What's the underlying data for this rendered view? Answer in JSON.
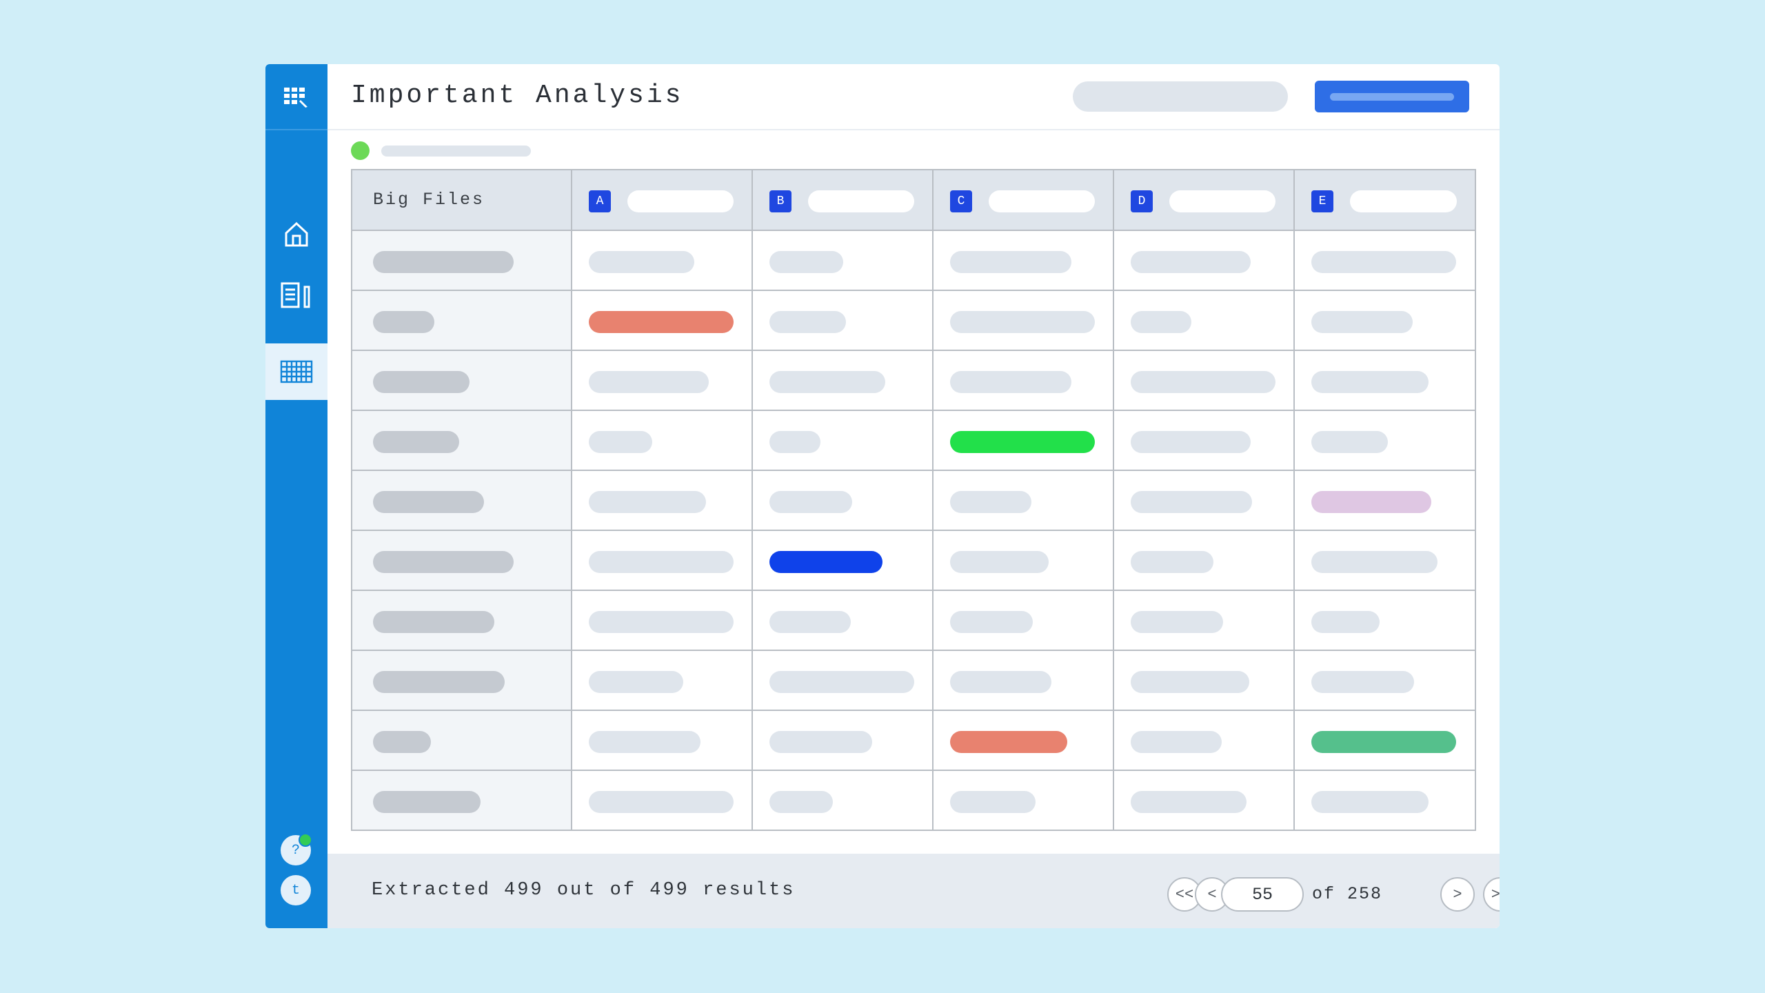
{
  "app": {
    "title": "Important Analysis"
  },
  "sidebar": {
    "items": [
      {
        "name": "home",
        "icon": "home-icon",
        "active": false
      },
      {
        "name": "documents",
        "icon": "document-edit-icon",
        "active": false
      },
      {
        "name": "grid",
        "icon": "table-grid-icon",
        "active": true
      }
    ],
    "bottom": {
      "help_label": "?",
      "user_initial": "t"
    }
  },
  "table": {
    "first_header": "Big Files",
    "columns": [
      {
        "badge": "A"
      },
      {
        "badge": "B"
      },
      {
        "badge": "C"
      },
      {
        "badge": "D"
      },
      {
        "badge": "E"
      }
    ],
    "colors": {
      "placeholder": "#dfe5ec",
      "first_col_placeholder": "#c5cad1",
      "red": "#e8826f",
      "green": "#22e04a",
      "lilac": "#dfc7e3",
      "blue": "#0f42ea",
      "teal": "#55c08c",
      "badge": "#1f47e0",
      "accent": "#1084d8"
    },
    "rows": [
      {
        "first": 0.8,
        "cells": [
          {
            "w": 0.73
          },
          {
            "w": 0.51
          },
          {
            "w": 0.84
          },
          {
            "w": 0.83
          },
          {
            "w": 1.0
          }
        ]
      },
      {
        "first": 0.35,
        "cells": [
          {
            "w": 1.0,
            "color": "red"
          },
          {
            "w": 0.53
          },
          {
            "w": 1.0
          },
          {
            "w": 0.42
          },
          {
            "w": 0.7
          }
        ]
      },
      {
        "first": 0.55,
        "cells": [
          {
            "w": 0.83
          },
          {
            "w": 0.8
          },
          {
            "w": 0.84
          },
          {
            "w": 1.0
          },
          {
            "w": 0.81
          }
        ]
      },
      {
        "first": 0.49,
        "cells": [
          {
            "w": 0.44
          },
          {
            "w": 0.35
          },
          {
            "w": 1.0,
            "color": "green"
          },
          {
            "w": 0.83
          },
          {
            "w": 0.53
          }
        ]
      },
      {
        "first": 0.63,
        "cells": [
          {
            "w": 0.81
          },
          {
            "w": 0.57
          },
          {
            "w": 0.56
          },
          {
            "w": 0.84
          },
          {
            "w": 0.83,
            "color": "lilac"
          }
        ]
      },
      {
        "first": 0.8,
        "cells": [
          {
            "w": 1.0
          },
          {
            "w": 0.78,
            "color": "blue"
          },
          {
            "w": 0.68
          },
          {
            "w": 0.57
          },
          {
            "w": 0.87
          }
        ]
      },
      {
        "first": 0.69,
        "cells": [
          {
            "w": 1.0
          },
          {
            "w": 0.56
          },
          {
            "w": 0.57
          },
          {
            "w": 0.64
          },
          {
            "w": 0.47
          }
        ]
      },
      {
        "first": 0.75,
        "cells": [
          {
            "w": 0.65
          },
          {
            "w": 1.0
          },
          {
            "w": 0.7
          },
          {
            "w": 0.82
          },
          {
            "w": 0.71
          }
        ]
      },
      {
        "first": 0.33,
        "cells": [
          {
            "w": 0.77
          },
          {
            "w": 0.71
          },
          {
            "w": 0.81,
            "color": "red"
          },
          {
            "w": 0.63
          },
          {
            "w": 1.0,
            "color": "teal"
          }
        ]
      },
      {
        "first": 0.61,
        "cells": [
          {
            "w": 1.0
          },
          {
            "w": 0.44
          },
          {
            "w": 0.59
          },
          {
            "w": 0.8
          },
          {
            "w": 0.81
          }
        ]
      }
    ]
  },
  "footer": {
    "results_text": "Extracted 499 out of 499 results",
    "page_value": "55",
    "of_text": "of 258",
    "first_label": "<<",
    "prev_label": "<",
    "next_label": ">",
    "last_label": ">>"
  }
}
